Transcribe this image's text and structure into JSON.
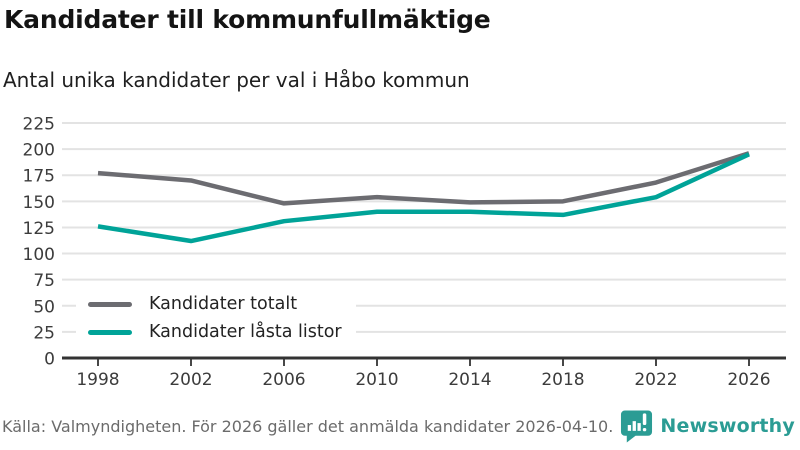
{
  "header": {
    "title": "Kandidater till kommunfullmäktige",
    "subtitle": "Antal unika kandidater per val i Håbo kommun"
  },
  "chart_data": {
    "type": "line",
    "x": [
      1998,
      2002,
      2006,
      2010,
      2014,
      2018,
      2022,
      2026
    ],
    "series": [
      {
        "name": "Kandidater totalt",
        "color": "#6c6c71",
        "values": [
          177,
          170,
          148,
          154,
          149,
          150,
          168,
          196
        ]
      },
      {
        "name": "Kandidater låsta listor",
        "color": "#00a398",
        "values": [
          126,
          112,
          131,
          140,
          140,
          137,
          154,
          195
        ]
      }
    ],
    "yticks": [
      0,
      25,
      50,
      75,
      100,
      125,
      150,
      175,
      200,
      225
    ],
    "ylim": [
      0,
      225
    ],
    "grid": true,
    "legend_position": "inside-bottom-left",
    "colors": {
      "gridline": "#e3e3e3",
      "axis": "#333333",
      "tick_text": "#3c3c3c"
    }
  },
  "footer": {
    "source": "Källa: Valmyndigheten. För 2026 gäller det anmälda kandidater 2026-04-10.",
    "brand": "Newsworthy",
    "brand_color": "#2b9c94"
  }
}
